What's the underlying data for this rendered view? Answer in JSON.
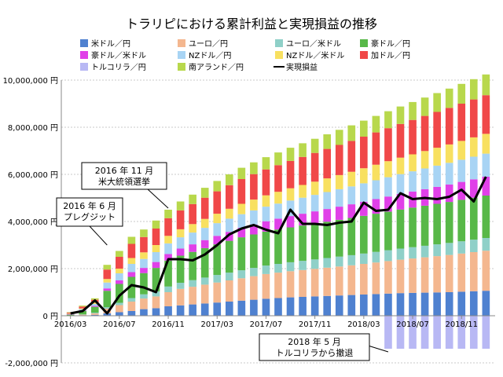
{
  "chart_data": {
    "type": "bar",
    "title": "トラリピにおける累計利益と実現損益の推移",
    "stacked": true,
    "ylim": [
      -2000000,
      10000000
    ],
    "yticks": [
      -2000000,
      0,
      2000000,
      4000000,
      6000000,
      8000000,
      10000000
    ],
    "ytick_labels": [
      "-2,000,000 円",
      "0 円",
      "2,000,000 円",
      "4,000,000 円",
      "6,000,000 円",
      "8,000,000 円",
      "10,000,000 円"
    ],
    "xtick_labels": [
      {
        "index": 0,
        "label": "2016/03"
      },
      {
        "index": 4,
        "label": "2016/07"
      },
      {
        "index": 8,
        "label": "2016/11"
      },
      {
        "index": 12,
        "label": "2017/03"
      },
      {
        "index": 16,
        "label": "2017/07"
      },
      {
        "index": 20,
        "label": "2017/11"
      },
      {
        "index": 24,
        "label": "2018/03"
      },
      {
        "index": 28,
        "label": "2018/07"
      },
      {
        "index": 32,
        "label": "2018/11"
      }
    ],
    "x_count": 35,
    "series": [
      {
        "name": "米ドル／円",
        "color": "#4f81d0",
        "values": [
          0,
          20000,
          40000,
          100000,
          150000,
          200000,
          280000,
          320000,
          400000,
          440000,
          480000,
          520000,
          560000,
          600000,
          640000,
          680000,
          720000,
          750000,
          780000,
          800000,
          820000,
          840000,
          860000,
          880000,
          900000,
          920000,
          940000,
          960000,
          970000,
          980000,
          990000,
          1000000,
          1020000,
          1040000,
          1060000
        ]
      },
      {
        "name": "ユーロ／円",
        "color": "#f4b78f",
        "values": [
          0,
          30000,
          60000,
          200000,
          300000,
          400000,
          450000,
          500000,
          600000,
          700000,
          750000,
          800000,
          850000,
          900000,
          950000,
          1000000,
          1050000,
          1080000,
          1110000,
          1140000,
          1170000,
          1200000,
          1230000,
          1260000,
          1300000,
          1340000,
          1380000,
          1420000,
          1460000,
          1500000,
          1540000,
          1580000,
          1620000,
          1660000,
          1700000
        ]
      },
      {
        "name": "ユーロ／米ドル",
        "color": "#8fd0c8",
        "values": [
          0,
          10000,
          30000,
          60000,
          100000,
          150000,
          180000,
          210000,
          240000,
          260000,
          280000,
          300000,
          320000,
          330000,
          340000,
          350000,
          360000,
          370000,
          380000,
          390000,
          400000,
          410000,
          420000,
          430000,
          440000,
          450000,
          460000,
          470000,
          480000,
          490000,
          500000,
          510000,
          520000,
          530000,
          540000
        ]
      },
      {
        "name": "豪ドル／円",
        "color": "#58b848",
        "values": [
          50000,
          150000,
          250000,
          700000,
          800000,
          900000,
          900000,
          1000000,
          1100000,
          1150000,
          1200000,
          1250000,
          1300000,
          1350000,
          1400000,
          1420000,
          1440000,
          1460000,
          1480000,
          1500000,
          1520000,
          1540000,
          1560000,
          1580000,
          1600000,
          1620000,
          1640000,
          1660000,
          1680000,
          1700000,
          1720000,
          1740000,
          1760000,
          1780000,
          1800000
        ]
      },
      {
        "name": "豪ドル／米ドル",
        "color": "#e040e8",
        "values": [
          10000,
          20000,
          40000,
          100000,
          150000,
          200000,
          220000,
          250000,
          280000,
          300000,
          320000,
          340000,
          360000,
          380000,
          400000,
          420000,
          440000,
          460000,
          480000,
          500000,
          520000,
          540000,
          560000,
          580000,
          600000,
          620000,
          640000,
          660000,
          680000,
          700000,
          720000,
          740000,
          760000,
          780000,
          800000
        ]
      },
      {
        "name": "NZドル／円",
        "color": "#a8d4f4",
        "values": [
          20000,
          50000,
          80000,
          250000,
          300000,
          350000,
          380000,
          420000,
          450000,
          480000,
          500000,
          520000,
          540000,
          560000,
          580000,
          600000,
          620000,
          640000,
          660000,
          680000,
          700000,
          720000,
          740000,
          760000,
          780000,
          800000,
          820000,
          840000,
          860000,
          880000,
          900000,
          920000,
          940000,
          960000,
          980000
        ]
      },
      {
        "name": "NZドル／米ドル",
        "color": "#f8e060",
        "values": [
          10000,
          30000,
          60000,
          150000,
          200000,
          250000,
          280000,
          300000,
          320000,
          340000,
          360000,
          380000,
          400000,
          420000,
          440000,
          460000,
          480000,
          500000,
          520000,
          540000,
          560000,
          580000,
          600000,
          620000,
          640000,
          660000,
          680000,
          700000,
          720000,
          740000,
          760000,
          780000,
          800000,
          820000,
          840000
        ]
      },
      {
        "name": "加ドル／円",
        "color": "#f04848",
        "values": [
          40000,
          80000,
          120000,
          400000,
          500000,
          600000,
          650000,
          700000,
          750000,
          800000,
          850000,
          900000,
          950000,
          1000000,
          1050000,
          1080000,
          1100000,
          1130000,
          1160000,
          1190000,
          1220000,
          1250000,
          1280000,
          1310000,
          1340000,
          1370000,
          1400000,
          1430000,
          1460000,
          1490000,
          1520000,
          1550000,
          1580000,
          1610000,
          1640000
        ]
      },
      {
        "name": "トルコリラ／円",
        "color": "#b8b8f4",
        "values": [
          0,
          0,
          0,
          0,
          0,
          0,
          0,
          0,
          0,
          0,
          0,
          0,
          0,
          0,
          0,
          0,
          0,
          0,
          0,
          0,
          0,
          0,
          0,
          0,
          0,
          0,
          -1400000,
          -1400000,
          -1400000,
          -1400000,
          -1400000,
          -1400000,
          -1400000,
          -1400000,
          -1400000
        ]
      },
      {
        "name": "南アランド／円",
        "color": "#b8d84c",
        "values": [
          20000,
          40000,
          60000,
          200000,
          250000,
          300000,
          320000,
          340000,
          360000,
          380000,
          400000,
          420000,
          440000,
          460000,
          480000,
          500000,
          520000,
          540000,
          560000,
          580000,
          600000,
          620000,
          640000,
          660000,
          680000,
          700000,
          720000,
          740000,
          760000,
          780000,
          800000,
          820000,
          840000,
          860000,
          880000
        ]
      }
    ],
    "line": {
      "name": "実現損益",
      "color": "#000000",
      "values": [
        100000,
        200000,
        650000,
        100000,
        850000,
        1300000,
        1200000,
        1000000,
        2400000,
        2400000,
        2350000,
        2600000,
        3000000,
        3450000,
        3700000,
        3850000,
        3650000,
        3500000,
        4500000,
        3900000,
        3900000,
        3850000,
        3950000,
        4000000,
        4800000,
        4450000,
        4500000,
        5200000,
        4950000,
        5000000,
        4950000,
        5050000,
        5350000,
        4850000,
        5900000
      ]
    },
    "annotations": [
      {
        "lines": [
          "2016 年 6 月",
          "プレグジット"
        ],
        "target_index": 3
      },
      {
        "lines": [
          "2016 年 11 月",
          "米大統領選挙"
        ],
        "target_index": 8
      },
      {
        "lines": [
          "2018 年 5 月",
          "トルコリラから撤退"
        ],
        "target_index": 26
      }
    ]
  }
}
